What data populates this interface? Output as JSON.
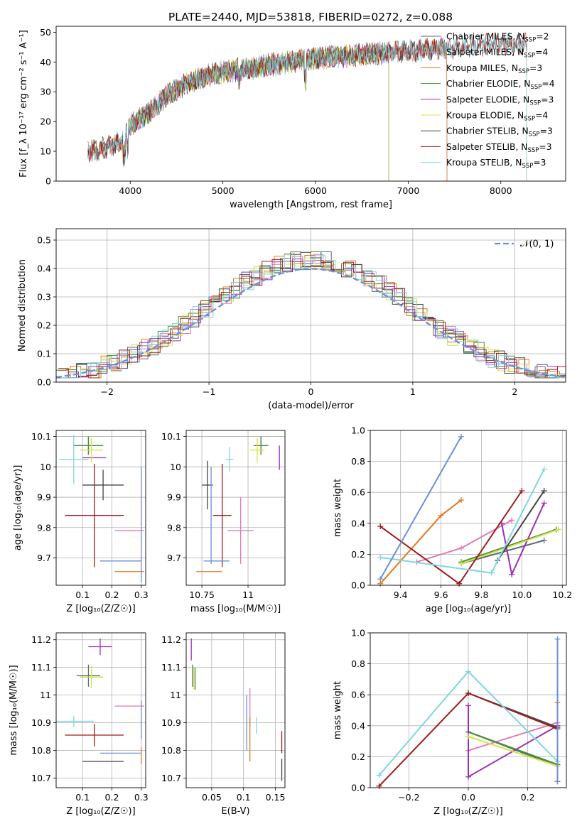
{
  "figure_title": "PLATE=2440, MJD=53818, FIBERID=0272, z=0.088",
  "colors": {
    "Chabrier MILES": "#5b6b7f",
    "Salpeter MILES": "#e27ab3",
    "Kroupa MILES": "#e07a1f",
    "Chabrier ELODIE": "#4a8f3d",
    "Salpeter ELODIE": "#9b30b5",
    "Kroupa ELODIE": "#d4e540",
    "Chabrier STELIB": "#444444",
    "Salpeter STELIB": "#a01b1b",
    "Kroupa STELIB": "#7fd6df",
    "gauss": "#6a8fd8"
  },
  "chart_data": [
    {
      "id": "spectrum",
      "type": "line",
      "title": "PLATE=2440, MJD=53818, FIBERID=0272, z=0.088",
      "xlabel": "wavelength [Angstrom, rest frame]",
      "ylabel": "Flux [f_λ 10⁻¹⁷ erg cm⁻² s⁻¹ A⁻¹]",
      "xlim": [
        3200,
        8700
      ],
      "ylim": [
        0,
        52
      ],
      "xticks": [
        4000,
        5000,
        6000,
        7000,
        8000
      ],
      "yticks": [
        0,
        10,
        20,
        30,
        40,
        50
      ],
      "grid": false,
      "legend": "top-right",
      "continuum": {
        "x": [
          3540,
          3700,
          3800,
          3900,
          4000,
          4100,
          4200,
          4300,
          4400,
          4500,
          4700,
          4900,
          5100,
          5300,
          5500,
          5700,
          5900,
          6100,
          6300,
          6500,
          6700,
          6900,
          7100,
          7300,
          7500,
          7700,
          7900,
          8100,
          8300
        ],
        "y": [
          10,
          11,
          12,
          13,
          19,
          21,
          23,
          26,
          29,
          31,
          34,
          36,
          37,
          38,
          39,
          40,
          41,
          41.5,
          42,
          42.5,
          43,
          43.5,
          44,
          44.5,
          45,
          45.5,
          46,
          46,
          46
        ]
      },
      "series": [
        {
          "name": "Chabrier MILES, N_SSP=2",
          "start": 3540,
          "end": 7420
        },
        {
          "name": "Salpeter MILES, N_SSP=4",
          "start": 3540,
          "end": 7420
        },
        {
          "name": "Kroupa MILES, N_SSP=3",
          "start": 3540,
          "end": 7420
        },
        {
          "name": "Chabrier ELODIE, N_SSP=4",
          "start": 3910,
          "end": 6790
        },
        {
          "name": "Salpeter ELODIE, N_SSP=3",
          "start": 3910,
          "end": 6790
        },
        {
          "name": "Kroupa ELODIE, N_SSP=4",
          "start": 3910,
          "end": 6790
        },
        {
          "name": "Chabrier STELIB, N_SSP=3",
          "start": 3540,
          "end": 8280
        },
        {
          "name": "Salpeter STELIB, N_SSP=3",
          "start": 3540,
          "end": 8280
        },
        {
          "name": "Kroupa STELIB, N_SSP=3",
          "start": 3540,
          "end": 8280
        }
      ]
    },
    {
      "id": "residuals",
      "type": "line",
      "xlabel": "(data-model)/error",
      "ylabel": "Normed distribution",
      "xlim": [
        -2.5,
        2.5
      ],
      "ylim": [
        0,
        0.54
      ],
      "xticks": [
        -2,
        -1,
        0,
        1,
        2
      ],
      "yticks": [
        0.0,
        0.1,
        0.2,
        0.3,
        0.4,
        0.5
      ],
      "grid": true,
      "legend": "top-right",
      "gaussian_label": "𝒩(0, 1)",
      "bins": {
        "start": -2.5,
        "width": 0.1,
        "count": 50
      }
    },
    {
      "id": "age_vs_Z",
      "type": "scatter",
      "xlabel": "Z [log₁₀(Z/Z☉)]",
      "ylabel": "age  [log₁₀(age/yr)]",
      "xlim": [
        0.01,
        0.315
      ],
      "ylim": [
        9.61,
        10.12
      ],
      "xticks": [
        0.1,
        0.2,
        0.3
      ],
      "yticks": [
        9.7,
        9.8,
        9.9,
        10.0,
        10.1
      ],
      "grid": true,
      "points": [
        {
          "series": "Chabrier MILES",
          "x": 0.12,
          "y": 10.07,
          "xerr": 0.05,
          "yerr": 0.03
        },
        {
          "series": "Salpeter MILES",
          "x": 0.26,
          "y": 9.79,
          "xerr": 0.05,
          "yerr": 0.0
        },
        {
          "series": "Kroupa MILES",
          "x": 0.26,
          "y": 9.655,
          "xerr": 0.05,
          "yerr": 0.0
        },
        {
          "series": "Chabrier ELODIE",
          "x": 0.12,
          "y": 10.07,
          "xerr": 0.05,
          "yerr": 0.03
        },
        {
          "series": "Salpeter ELODIE",
          "x": 0.14,
          "y": 10.03,
          "xerr": 0.04,
          "yerr": 0.0
        },
        {
          "series": "Kroupa ELODIE",
          "x": 0.13,
          "y": 10.055,
          "xerr": 0.04,
          "yerr": 0.04
        },
        {
          "series": "Chabrier STELIB",
          "x": 0.17,
          "y": 9.94,
          "xerr": 0.07,
          "yerr": 0.05
        },
        {
          "series": "Salpeter STELIB",
          "x": 0.14,
          "y": 9.84,
          "xerr": 0.1,
          "yerr": 0.17
        },
        {
          "series": "Kroupa STELIB",
          "x": 0.07,
          "y": 10.025,
          "xerr": 0.05,
          "yerr": 0.08
        },
        {
          "series": "gauss",
          "x": 0.23,
          "y": 9.69,
          "xerr": 0.07,
          "yerr": 0.0
        },
        {
          "series": "gauss",
          "x": 0.3,
          "y": 9.81,
          "xerr": 0.0,
          "yerr": 0.19
        }
      ]
    },
    {
      "id": "age_vs_mass",
      "type": "scatter",
      "xlabel": "mass [log₁₀(M/M☉)]",
      "ylabel": "",
      "xlim": [
        10.665,
        11.2
      ],
      "ylim": [
        9.61,
        10.12
      ],
      "xticks": [
        10.75,
        11.0
      ],
      "yticks": [
        9.7,
        9.8,
        9.9,
        10.0,
        10.1
      ],
      "grid": true,
      "points": [
        {
          "series": "Chabrier MILES",
          "x": 11.07,
          "y": 10.07,
          "xerr": 0.04,
          "yerr": 0.03
        },
        {
          "series": "Salpeter MILES",
          "x": 10.96,
          "y": 9.79,
          "xerr": 0.07,
          "yerr": 0.11
        },
        {
          "series": "Kroupa MILES",
          "x": 10.79,
          "y": 9.655,
          "xerr": 0.07,
          "yerr": 0.0
        },
        {
          "series": "Chabrier ELODIE",
          "x": 11.07,
          "y": 10.07,
          "xerr": 0.04,
          "yerr": 0.03
        },
        {
          "series": "Salpeter ELODIE",
          "x": 11.17,
          "y": 10.03,
          "xerr": 0.0,
          "yerr": 0.04
        },
        {
          "series": "Kroupa ELODIE",
          "x": 11.05,
          "y": 10.055,
          "xerr": 0.04,
          "yerr": 0.04
        },
        {
          "series": "Chabrier STELIB",
          "x": 10.78,
          "y": 9.94,
          "xerr": 0.03,
          "yerr": 0.08
        },
        {
          "series": "Salpeter STELIB",
          "x": 10.86,
          "y": 9.84,
          "xerr": 0.05,
          "yerr": 0.17
        },
        {
          "series": "Kroupa STELIB",
          "x": 10.9,
          "y": 10.025,
          "xerr": 0.02,
          "yerr": 0.04
        },
        {
          "series": "gauss",
          "x": 10.83,
          "y": 9.69,
          "xerr": 0.07,
          "yerr": 0.0
        },
        {
          "series": "gauss",
          "x": 10.8,
          "y": 9.84,
          "xerr": 0.0,
          "yerr": 0.16
        }
      ]
    },
    {
      "id": "massweight_vs_age",
      "type": "line",
      "xlabel": "age  [log₁₀(age/yr)]",
      "ylabel": "mass weight",
      "xlim": [
        9.25,
        10.22
      ],
      "ylim": [
        0.0,
        1.0
      ],
      "xticks": [
        9.4,
        9.6,
        9.8,
        10.0,
        10.2
      ],
      "yticks": [
        0.0,
        0.2,
        0.4,
        0.6,
        0.8,
        1.0
      ],
      "grid": true,
      "series": [
        {
          "name": "Chabrier MILES",
          "x": [
            9.7,
            10.11
          ],
          "y": [
            0.14,
            0.29
          ]
        },
        {
          "name": "Salpeter MILES",
          "x": [
            9.48,
            9.7,
            9.95
          ],
          "y": [
            0.15,
            0.24,
            0.42
          ]
        },
        {
          "name": "Kroupa MILES",
          "x": [
            9.3,
            9.6,
            9.7
          ],
          "y": [
            0.01,
            0.45,
            0.55
          ]
        },
        {
          "name": "Chabrier ELODIE",
          "x": [
            9.7,
            10.17
          ],
          "y": [
            0.15,
            0.36
          ]
        },
        {
          "name": "Salpeter ELODIE",
          "x": [
            9.9,
            9.95,
            10.11
          ],
          "y": [
            0.4,
            0.07,
            0.53
          ]
        },
        {
          "name": "Kroupa ELODIE",
          "x": [
            9.7,
            10.18
          ],
          "y": [
            0.14,
            0.36
          ]
        },
        {
          "name": "Chabrier STELIB",
          "x": [
            9.88,
            10.11
          ],
          "y": [
            0.16,
            0.61
          ]
        },
        {
          "name": "Salpeter STELIB",
          "x": [
            9.3,
            9.69,
            10.0
          ],
          "y": [
            0.38,
            0.01,
            0.61
          ]
        },
        {
          "name": "Kroupa STELIB",
          "x": [
            9.3,
            9.85,
            10.11
          ],
          "y": [
            0.18,
            0.08,
            0.75
          ]
        },
        {
          "name": "gauss",
          "x": [
            9.3,
            9.7
          ],
          "y": [
            0.04,
            0.96
          ]
        }
      ]
    },
    {
      "id": "mass_vs_Z",
      "type": "scatter",
      "xlabel": "Z [log₁₀(Z/Z☉)]",
      "ylabel": "mass [log₁₀(M/M☉)]",
      "xlim": [
        0.01,
        0.315
      ],
      "ylim": [
        10.665,
        11.225
      ],
      "xticks": [
        0.1,
        0.2,
        0.3
      ],
      "yticks": [
        10.7,
        10.8,
        10.9,
        11.0,
        11.1,
        11.2
      ],
      "grid": true,
      "points": [
        {
          "series": "Chabrier MILES",
          "x": 0.12,
          "y": 11.07,
          "xerr": 0.04,
          "yerr": 0.04
        },
        {
          "series": "Salpeter MILES",
          "x": 0.26,
          "y": 10.96,
          "xerr": 0.05,
          "yerr": 0.0
        },
        {
          "series": "Kroupa MILES",
          "x": 0.3,
          "y": 10.78,
          "xerr": 0.0,
          "yerr": 0.03
        },
        {
          "series": "Chabrier ELODIE",
          "x": 0.13,
          "y": 11.065,
          "xerr": 0.04,
          "yerr": 0.0
        },
        {
          "series": "Salpeter ELODIE",
          "x": 0.16,
          "y": 11.175,
          "xerr": 0.04,
          "yerr": 0.03
        },
        {
          "series": "Kroupa ELODIE",
          "x": 0.13,
          "y": 11.065,
          "xerr": 0.04,
          "yerr": 0.04
        },
        {
          "series": "Chabrier STELIB",
          "x": 0.17,
          "y": 10.76,
          "xerr": 0.07,
          "yerr": 0.0
        },
        {
          "series": "Salpeter STELIB",
          "x": 0.14,
          "y": 10.855,
          "xerr": 0.1,
          "yerr": 0.04
        },
        {
          "series": "Kroupa STELIB",
          "x": 0.07,
          "y": 10.905,
          "xerr": 0.07,
          "yerr": 0.02
        },
        {
          "series": "gauss",
          "x": 0.23,
          "y": 10.79,
          "xerr": 0.07,
          "yerr": 0.0
        },
        {
          "series": "gauss",
          "x": 0.3,
          "y": 10.91,
          "xerr": 0.0,
          "yerr": 0.07
        }
      ]
    },
    {
      "id": "mass_vs_ebv",
      "type": "scatter",
      "xlabel": "E(B-V)",
      "ylabel": "",
      "xlim": [
        0.01,
        0.165
      ],
      "ylim": [
        10.665,
        11.225
      ],
      "xticks": [
        0.05,
        0.1,
        0.15
      ],
      "yticks": [
        10.7,
        10.8,
        10.9,
        11.0,
        11.1,
        11.2
      ],
      "grid": true,
      "points": [
        {
          "series": "Chabrier MILES",
          "x": 0.02,
          "y": 11.07,
          "xerr": 0.0,
          "yerr": 0.04
        },
        {
          "series": "Salpeter MILES",
          "x": 0.11,
          "y": 10.955,
          "xerr": 0.0,
          "yerr": 0.07
        },
        {
          "series": "Kroupa MILES",
          "x": 0.11,
          "y": 10.84,
          "xerr": 0.0,
          "yerr": 0.08
        },
        {
          "series": "Chabrier ELODIE",
          "x": 0.024,
          "y": 11.06,
          "xerr": 0.0,
          "yerr": 0.04
        },
        {
          "series": "Salpeter ELODIE",
          "x": 0.018,
          "y": 11.165,
          "xerr": 0.0,
          "yerr": 0.04
        },
        {
          "series": "Kroupa ELODIE",
          "x": 0.022,
          "y": 11.06,
          "xerr": 0.0,
          "yerr": 0.04
        },
        {
          "series": "Chabrier STELIB",
          "x": 0.16,
          "y": 10.73,
          "xerr": 0.0,
          "yerr": 0.04
        },
        {
          "series": "Salpeter STELIB",
          "x": 0.16,
          "y": 10.83,
          "xerr": 0.0,
          "yerr": 0.04
        },
        {
          "series": "Kroupa STELIB",
          "x": 0.12,
          "y": 10.89,
          "xerr": 0.0,
          "yerr": 0.03
        },
        {
          "series": "gauss",
          "x": 0.105,
          "y": 10.9,
          "xerr": 0.0,
          "yerr": 0.1
        }
      ]
    },
    {
      "id": "massweight_vs_Z",
      "type": "line",
      "xlabel": "Z [log₁₀(Z/Z☉)]",
      "ylabel": "mass weight",
      "xlim": [
        -0.33,
        0.33
      ],
      "ylim": [
        0.0,
        1.0
      ],
      "xticks": [
        -0.2,
        0.0,
        0.2
      ],
      "yticks": [
        0.0,
        0.2,
        0.4,
        0.6,
        0.8,
        1.0
      ],
      "grid": true,
      "series": [
        {
          "name": "Chabrier MILES",
          "x": [
            0.0,
            0.3
          ],
          "y": [
            0.36,
            0.14
          ]
        },
        {
          "name": "Salpeter MILES",
          "x": [
            0.0,
            0.3
          ],
          "y": [
            0.24,
            0.42
          ]
        },
        {
          "name": "Kroupa MILES",
          "x": [
            0.3,
            0.3
          ],
          "y": [
            0.04,
            0.55
          ]
        },
        {
          "name": "Chabrier ELODIE",
          "x": [
            0.0,
            0.3
          ],
          "y": [
            0.36,
            0.15
          ]
        },
        {
          "name": "Salpeter ELODIE",
          "x": [
            0.0,
            0.0,
            0.3
          ],
          "y": [
            0.53,
            0.07,
            0.4
          ]
        },
        {
          "name": "Kroupa ELODIE",
          "x": [
            0.0,
            0.3
          ],
          "y": [
            0.33,
            0.14
          ]
        },
        {
          "name": "Chabrier STELIB",
          "x": [
            0.0,
            0.3
          ],
          "y": [
            0.61,
            0.39
          ]
        },
        {
          "name": "Salpeter STELIB",
          "x": [
            -0.3,
            0.0,
            0.3
          ],
          "y": [
            0.01,
            0.61,
            0.38
          ]
        },
        {
          "name": "Kroupa STELIB",
          "x": [
            -0.3,
            0.0,
            0.3
          ],
          "y": [
            0.08,
            0.75,
            0.17
          ]
        },
        {
          "name": "gauss",
          "x": [
            0.3,
            0.3
          ],
          "y": [
            0.04,
            0.96
          ]
        }
      ]
    }
  ]
}
